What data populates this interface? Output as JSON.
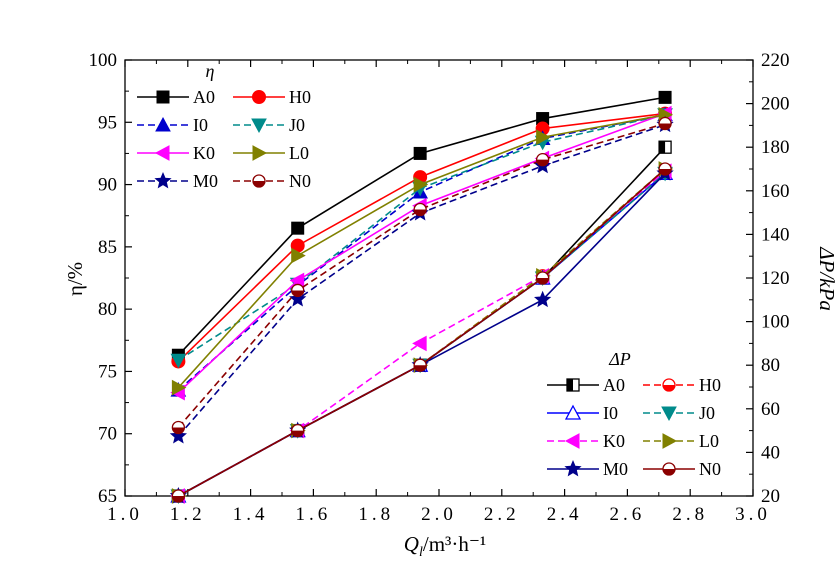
{
  "chart_data": {
    "type": "line",
    "xlabel": "Q_l/m³·h⁻¹",
    "xlabel_main": "Q",
    "xlabel_sub": "l",
    "xlabel_rest": "/m³·h⁻¹",
    "ylabel_left": "η/%",
    "ylabel_right": "ΔP/kPa",
    "xlim": [
      1.0,
      3.0
    ],
    "ylim_left": [
      65,
      100
    ],
    "ylim_right": [
      20,
      220
    ],
    "x_ticks": [
      "1.0",
      "1.2",
      "1.4",
      "1.6",
      "1.8",
      "2.0",
      "2.2",
      "2.4",
      "2.6",
      "2.8",
      "3.0"
    ],
    "y_left_ticks": [
      "65",
      "70",
      "75",
      "80",
      "85",
      "90",
      "95",
      "100"
    ],
    "y_right_ticks": [
      "20",
      "40",
      "60",
      "80",
      "100",
      "120",
      "140",
      "160",
      "180",
      "200",
      "220"
    ],
    "legend_eta_title": "η",
    "legend_dp_title": "ΔP",
    "x": [
      1.17,
      1.55,
      1.94,
      2.33,
      2.72
    ],
    "eta_series": [
      {
        "name": "A0",
        "color": "#000000",
        "dash": "solid",
        "marker": "square",
        "values": [
          76.3,
          86.5,
          92.5,
          95.3,
          97.0
        ]
      },
      {
        "name": "H0",
        "color": "#ff0000",
        "dash": "solid",
        "marker": "circle",
        "values": [
          75.8,
          85.1,
          90.6,
          94.5,
          95.7
        ]
      },
      {
        "name": "I0",
        "color": "#0000cd",
        "dash": "dashed",
        "marker": "triangle-up",
        "values": [
          73.5,
          81.9,
          89.4,
          93.7,
          95.6
        ]
      },
      {
        "name": "J0",
        "color": "#008b8b",
        "dash": "dashed",
        "marker": "triangle-down",
        "values": [
          75.9,
          82.0,
          89.7,
          93.4,
          95.6
        ]
      },
      {
        "name": "K0",
        "color": "#ff00ff",
        "dash": "solid",
        "marker": "triangle-left",
        "values": [
          73.3,
          82.3,
          88.3,
          92.1,
          95.7
        ]
      },
      {
        "name": "L0",
        "color": "#808000",
        "dash": "solid",
        "marker": "triangle-right",
        "values": [
          73.7,
          84.3,
          90.0,
          93.8,
          95.6
        ]
      },
      {
        "name": "M0",
        "color": "#00008b",
        "dash": "dashed",
        "marker": "star",
        "values": [
          69.8,
          80.8,
          87.7,
          91.5,
          94.8
        ]
      },
      {
        "name": "N0",
        "color": "#8b0000",
        "dash": "dashed",
        "marker": "circle-half",
        "values": [
          70.5,
          81.5,
          88.0,
          92.0,
          94.9
        ]
      }
    ],
    "dp_series": [
      {
        "name": "A0",
        "color": "#000000",
        "dash": "solid",
        "marker": "square-half",
        "values": [
          20,
          50,
          80,
          120,
          180
        ]
      },
      {
        "name": "H0",
        "color": "#ff0000",
        "dash": "dashed",
        "marker": "circle-half",
        "values": [
          20,
          50,
          80,
          121,
          169
        ]
      },
      {
        "name": "I0",
        "color": "#0000ff",
        "dash": "solid",
        "marker": "triangle-up-open",
        "values": [
          20,
          50,
          80,
          120,
          168
        ]
      },
      {
        "name": "J0",
        "color": "#008b8b",
        "dash": "dashed",
        "marker": "triangle-down",
        "values": [
          20,
          50,
          80,
          120,
          168
        ]
      },
      {
        "name": "K0",
        "color": "#ff00ff",
        "dash": "dashed",
        "marker": "triangle-left",
        "values": [
          20,
          50,
          90,
          121,
          169
        ]
      },
      {
        "name": "L0",
        "color": "#808000",
        "dash": "dashed",
        "marker": "triangle-right",
        "values": [
          20,
          50,
          80,
          121,
          170
        ]
      },
      {
        "name": "M0",
        "color": "#00008b",
        "dash": "solid",
        "marker": "star",
        "values": [
          20,
          50,
          80,
          110,
          168
        ]
      },
      {
        "name": "N0",
        "color": "#8b0000",
        "dash": "solid",
        "marker": "circle-half",
        "values": [
          20,
          50,
          80,
          120,
          170
        ]
      }
    ]
  }
}
